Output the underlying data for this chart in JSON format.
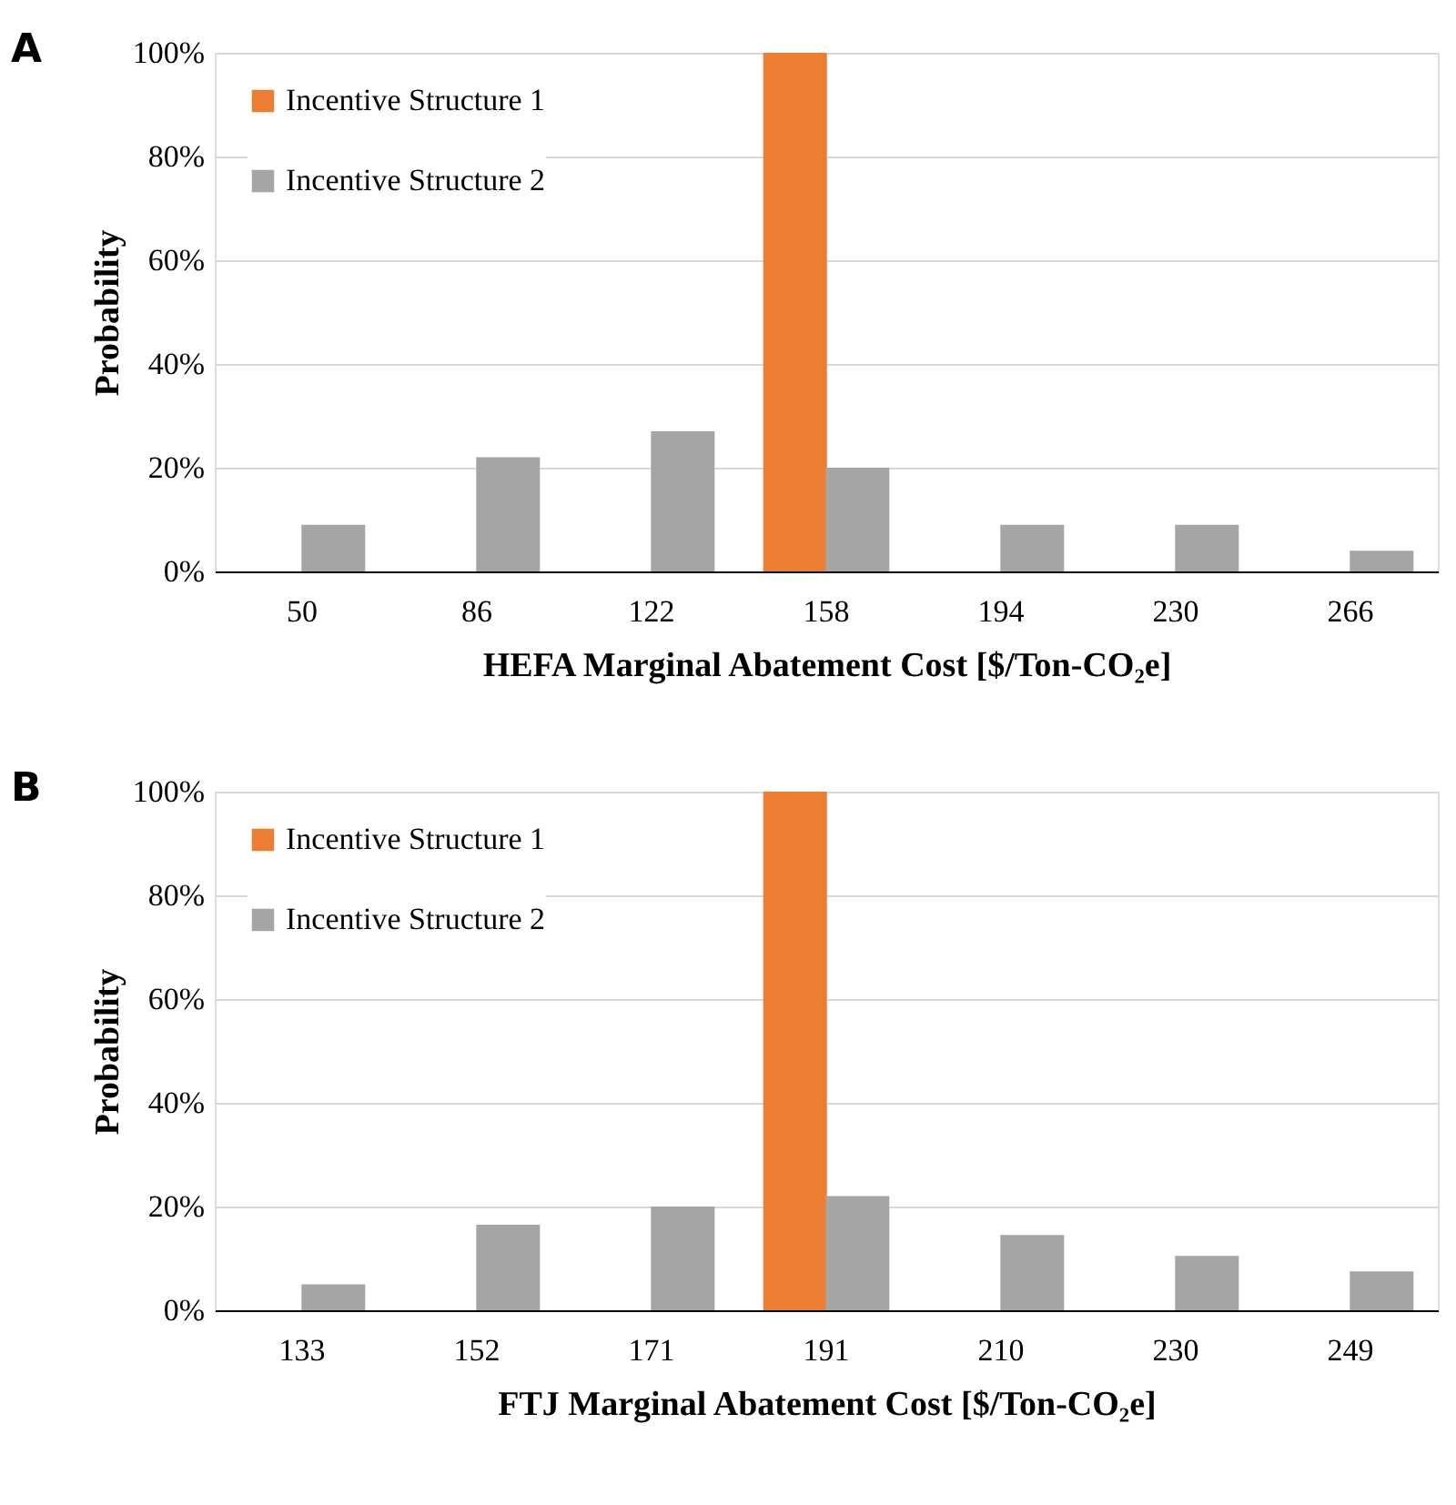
{
  "chart_data": [
    {
      "type": "bar",
      "annotations": [
        "A"
      ],
      "xlabel": "HEFA Marginal Abatement Cost [$/Ton-CO₂e]",
      "ylabel": "Probability",
      "categories": [
        "50",
        "86",
        "122",
        "158",
        "194",
        "230",
        "266"
      ],
      "series": [
        {
          "name": "Incentive Structure 1",
          "color": "#ed7d31",
          "values": [
            null,
            null,
            null,
            100,
            null,
            null,
            null
          ]
        },
        {
          "name": "Incentive Structure 2",
          "color": "#a5a5a5",
          "values": [
            9,
            22,
            27,
            20,
            9,
            9,
            4
          ]
        }
      ],
      "ylim": [
        0,
        100
      ],
      "yticks": [
        {
          "value": 0,
          "label": "0%"
        },
        {
          "value": 20,
          "label": "20%"
        },
        {
          "value": 40,
          "label": "40%"
        },
        {
          "value": 60,
          "label": "60%"
        },
        {
          "value": 80,
          "label": "80%"
        },
        {
          "value": 100,
          "label": "100%"
        }
      ],
      "grid": "y",
      "legend": "top left"
    },
    {
      "type": "bar",
      "annotations": [
        "B"
      ],
      "xlabel": "FTJ Marginal Abatement Cost [$/Ton-CO₂e]",
      "ylabel": "Probability",
      "categories": [
        "133",
        "152",
        "171",
        "191",
        "210",
        "230",
        "249"
      ],
      "series": [
        {
          "name": "Incentive Structure 1",
          "color": "#ed7d31",
          "values": [
            null,
            null,
            null,
            100,
            null,
            null,
            null
          ]
        },
        {
          "name": "Incentive Structure 2",
          "color": "#a5a5a5",
          "values": [
            5,
            16.5,
            20,
            22,
            14.5,
            10.5,
            7.5
          ]
        }
      ],
      "ylim": [
        0,
        100
      ],
      "yticks": [
        {
          "value": 0,
          "label": "0%"
        },
        {
          "value": 20,
          "label": "20%"
        },
        {
          "value": 40,
          "label": "40%"
        },
        {
          "value": 60,
          "label": "60%"
        },
        {
          "value": 80,
          "label": "80%"
        },
        {
          "value": 100,
          "label": "100%"
        }
      ],
      "grid": "y",
      "legend": "top left"
    }
  ]
}
